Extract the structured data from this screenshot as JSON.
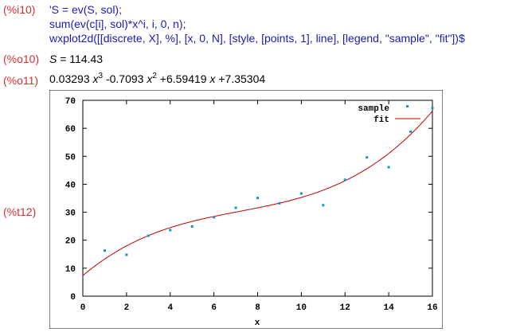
{
  "cells": {
    "input": {
      "label": "(%i10)",
      "lines": [
        "'S = ev(S, sol);",
        "sum(ev(c[i], sol)*x^i, i, 0, n);",
        "wxplot2d([[discrete, X], %], [x, 0, N], [style, [points, 1], line], [legend, \"sample\", \"fit\"])$"
      ]
    },
    "output1": {
      "label": "(%o10)",
      "lhs": "S",
      "eq": " = 114.43"
    },
    "output2": {
      "label": "(%o11)",
      "c3": "0.03293",
      "c2": "-0.7093",
      "c1": "+6.59419",
      "c0": "+7.35304",
      "var": "x",
      "exp3": "3",
      "exp2": "2"
    },
    "plot_label": "(%t12)"
  },
  "colors": {
    "label": "#d03030",
    "input": "#1a1ab4",
    "sample": "#1a8fd0",
    "fit": "#c00000"
  },
  "chart_data": {
    "type": "scatter",
    "xlabel": "x",
    "xlim": [
      0,
      16
    ],
    "ylim": [
      0,
      70
    ],
    "xticks": [
      0,
      2,
      4,
      6,
      8,
      10,
      12,
      14,
      16
    ],
    "yticks": [
      0,
      10,
      20,
      30,
      40,
      50,
      60,
      70
    ],
    "legend_position": "top-right",
    "series": [
      {
        "name": "sample",
        "style": "points",
        "x": [
          1,
          2,
          3,
          4,
          5,
          6,
          7,
          8,
          9,
          10,
          11,
          12,
          13,
          14,
          15,
          16
        ],
        "y": [
          16.3,
          14.8,
          21.6,
          23.6,
          24.9,
          28.2,
          31.6,
          35.1,
          33.2,
          36.7,
          32.5,
          41.6,
          49.6,
          46.1,
          58.8,
          67.3
        ]
      },
      {
        "name": "fit",
        "style": "line",
        "coefficients": [
          7.35304,
          6.59419,
          -0.7093,
          0.03293
        ]
      }
    ]
  }
}
